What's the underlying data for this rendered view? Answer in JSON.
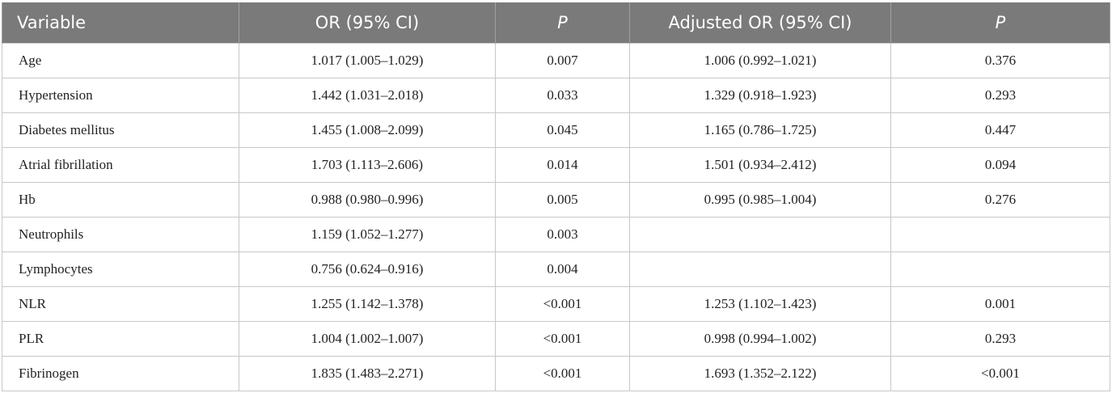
{
  "header": {
    "col1": "Variable",
    "col2": "OR (95% CI)",
    "col3": "P",
    "col4": "Adjusted OR (95% CI)",
    "col5": "P"
  },
  "rows": [
    {
      "variable": "Age",
      "or": "1.017 (1.005–1.029)",
      "p": "0.007",
      "adj_or": "1.006 (0.992–1.021)",
      "adj_p": "0.376"
    },
    {
      "variable": "Hypertension",
      "or": "1.442 (1.031–2.018)",
      "p": "0.033",
      "adj_or": "1.329 (0.918–1.923)",
      "adj_p": "0.293"
    },
    {
      "variable": "Diabetes mellitus",
      "or": "1.455 (1.008–2.099)",
      "p": "0.045",
      "adj_or": "1.165 (0.786–1.725)",
      "adj_p": "0.447"
    },
    {
      "variable": "Atrial fibrillation",
      "or": "1.703 (1.113–2.606)",
      "p": "0.014",
      "adj_or": "1.501 (0.934–2.412)",
      "adj_p": "0.094"
    },
    {
      "variable": "Hb",
      "or": "0.988 (0.980–0.996)",
      "p": "0.005",
      "adj_or": "0.995 (0.985–1.004)",
      "adj_p": "0.276"
    },
    {
      "variable": "Neutrophils",
      "or": "1.159 (1.052–1.277)",
      "p": "0.003",
      "adj_or": "",
      "adj_p": ""
    },
    {
      "variable": "Lymphocytes",
      "or": "0.756 (0.624–0.916)",
      "p": "0.004",
      "adj_or": "",
      "adj_p": ""
    },
    {
      "variable": "NLR",
      "or": "1.255 (1.142–1.378)",
      "p": "<0.001",
      "adj_or": "1.253 (1.102–1.423)",
      "adj_p": "0.001"
    },
    {
      "variable": "PLR",
      "or": "1.004 (1.002–1.007)",
      "p": "<0.001",
      "adj_or": "0.998 (0.994–1.002)",
      "adj_p": "0.293"
    },
    {
      "variable": "Fibrinogen",
      "or": "1.835 (1.483–2.271)",
      "p": "<0.001",
      "adj_or": "1.693 (1.352–2.122)",
      "adj_p": "<0.001"
    }
  ]
}
